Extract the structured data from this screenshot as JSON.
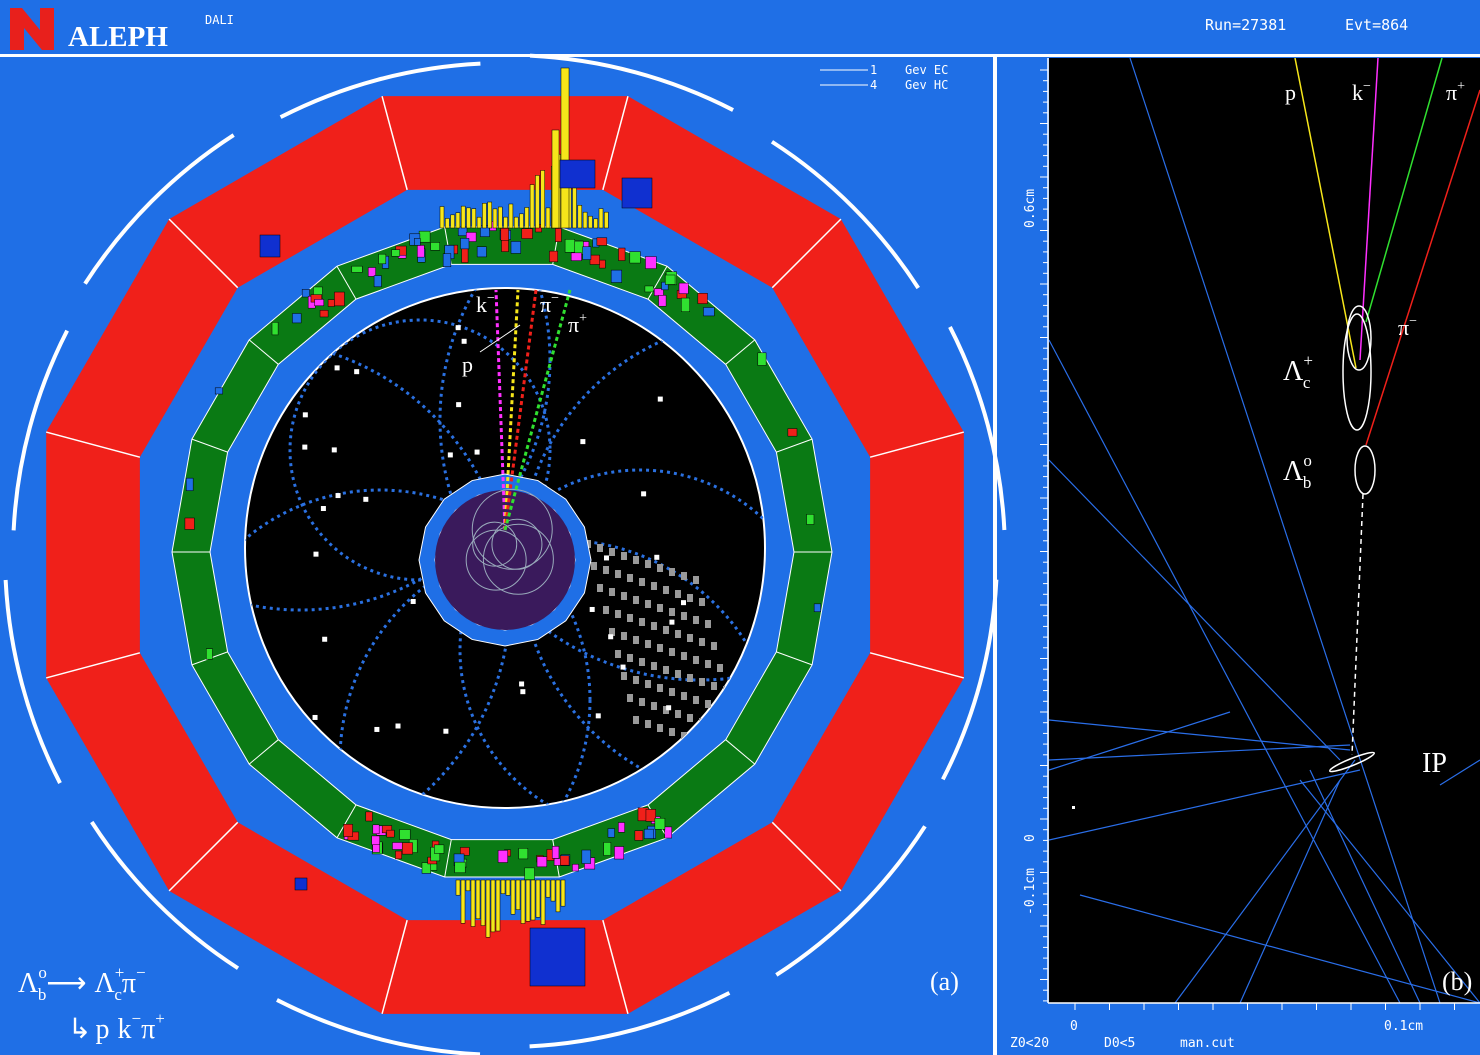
{
  "header": {
    "logo": "ALEPH",
    "program": "DALI",
    "run": "Run=27381",
    "event": "Evt=864"
  },
  "scale_legend": [
    {
      "amount": "1",
      "unit": "Gev EC"
    },
    {
      "amount": "4",
      "unit": "Gev HC"
    }
  ],
  "panel_a": {
    "label": "(a)",
    "tracks": {
      "k": [
        "k",
        "−"
      ],
      "pi_minus": [
        "π",
        "−"
      ],
      "pi_plus": [
        "π",
        "+"
      ],
      "p": "p"
    },
    "decay": {
      "line1": [
        "Λ",
        "o",
        "b",
        "⟶",
        "Λ",
        "+",
        "c",
        "π",
        "−"
      ],
      "line2": [
        "↳",
        "p",
        "k",
        "−",
        "π",
        "+"
      ]
    }
  },
  "panel_b": {
    "label": "(b)",
    "tracks": {
      "p": "p",
      "k": [
        "k",
        "−"
      ],
      "pi_plus": [
        "π",
        "+"
      ],
      "pi_minus": [
        "π",
        "−"
      ]
    },
    "vertices": {
      "lambda_c": [
        "Λ",
        "+",
        "c"
      ],
      "lambda_b": [
        "Λ",
        "o",
        "b"
      ],
      "ip": "IP"
    },
    "y_axis": [
      "0.6cm",
      "0",
      "-0.1cm"
    ],
    "x_axis": [
      "0",
      "0.1cm"
    ],
    "cuts": [
      "Z0<20",
      "D0<5",
      "man.cut"
    ]
  }
}
